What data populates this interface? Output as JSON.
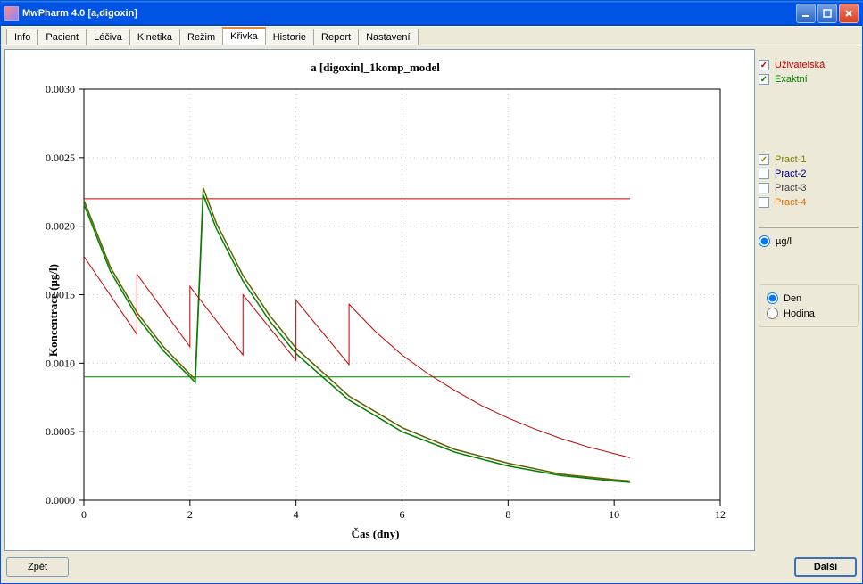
{
  "window": {
    "title": "MwPharm 4.0  [a,digoxin]"
  },
  "tabs": [
    "Info",
    "Pacient",
    "Léčiva",
    "Kinetika",
    "Režim",
    "Křivka",
    "Historie",
    "Report",
    "Nastavení"
  ],
  "active_tab_index": 5,
  "buttons": {
    "back_label": "Zpět",
    "next_label": "Další"
  },
  "legend": {
    "series": [
      {
        "label": "Uživatelská",
        "color": "#c00000",
        "checked": true
      },
      {
        "label": "Exaktní",
        "color": "#008000",
        "checked": true
      }
    ],
    "pract": [
      {
        "label": "Pract-1",
        "color": "#808000",
        "checked": true
      },
      {
        "label": "Pract-2",
        "color": "#000080",
        "checked": false
      },
      {
        "label": "Pract-3",
        "color": "#404040",
        "checked": false
      },
      {
        "label": "Pract-4",
        "color": "#e07000",
        "checked": false
      }
    ]
  },
  "units": {
    "options": [
      "µg/l"
    ],
    "selected": "µg/l"
  },
  "time_unit": {
    "options": [
      "Den",
      "Hodina"
    ],
    "selected": "Den"
  },
  "chart": {
    "title": "a [digoxin]_1komp_model",
    "ylabel": "Koncentrace  (µg/l)",
    "xlabel": "Čas (dny)",
    "xlim": [
      0,
      12
    ],
    "ylim": [
      0.0,
      0.003
    ],
    "xtick_step": 2,
    "ytick_step": 0.0005,
    "ytick_format_decimals": 4,
    "grid_color": "#cccccc",
    "axis_color": "#000000",
    "background": "#ffffff",
    "tick_fontsize": 12,
    "tick_fontfamily": "Times New Roman, serif",
    "href_lines": [
      {
        "y": 0.0009,
        "color": "#008000",
        "width": 1,
        "xmax": 10.3
      },
      {
        "y": 0.0022,
        "color": "#c00000",
        "width": 1,
        "xmax": 10.3
      }
    ],
    "series_decay": [
      {
        "name": "olive",
        "color": "#606000",
        "width": 1.5,
        "points": [
          [
            0,
            0.00219
          ],
          [
            0.5,
            0.0017
          ],
          [
            1,
            0.00137
          ],
          [
            1.5,
            0.00112
          ],
          [
            2,
            0.00092
          ],
          [
            2.1,
            0.00088
          ],
          [
            2.25,
            0.00228
          ],
          [
            2.5,
            0.00202
          ],
          [
            3,
            0.00164
          ],
          [
            3.5,
            0.00135
          ],
          [
            4,
            0.00111
          ],
          [
            5,
            0.00076
          ],
          [
            6,
            0.00053
          ],
          [
            7,
            0.00037
          ],
          [
            8,
            0.00027
          ],
          [
            9,
            0.00019
          ],
          [
            10,
            0.00015
          ],
          [
            10.3,
            0.00014
          ]
        ]
      },
      {
        "name": "green",
        "color": "#008000",
        "width": 1.5,
        "points": [
          [
            0,
            0.00216
          ],
          [
            0.5,
            0.00167
          ],
          [
            1,
            0.00134
          ],
          [
            1.5,
            0.00109
          ],
          [
            2,
            0.0009
          ],
          [
            2.1,
            0.00086
          ],
          [
            2.25,
            0.00223
          ],
          [
            2.5,
            0.00198
          ],
          [
            3,
            0.0016
          ],
          [
            3.5,
            0.00131
          ],
          [
            4,
            0.00107
          ],
          [
            5,
            0.00073
          ],
          [
            6,
            0.0005
          ],
          [
            7,
            0.00035
          ],
          [
            8,
            0.00025
          ],
          [
            9,
            0.00018
          ],
          [
            10,
            0.00014
          ],
          [
            10.3,
            0.00013
          ]
        ]
      },
      {
        "name": "red_sawtooth",
        "color": "#c00000",
        "width": 1,
        "points": [
          [
            0,
            0.00178
          ],
          [
            1,
            0.00121
          ],
          [
            1,
            0.00165
          ],
          [
            2,
            0.00112
          ],
          [
            2,
            0.00156
          ],
          [
            3,
            0.00106
          ],
          [
            3,
            0.0015
          ],
          [
            4,
            0.00102
          ],
          [
            4,
            0.00146
          ],
          [
            5,
            0.00099
          ],
          [
            5,
            0.00143
          ],
          [
            5.5,
            0.00123
          ],
          [
            6,
            0.00106
          ],
          [
            6.5,
            0.00092
          ],
          [
            7,
            0.0008
          ],
          [
            7.5,
            0.00069
          ],
          [
            8,
            0.0006
          ],
          [
            8.5,
            0.00052
          ],
          [
            9,
            0.00045
          ],
          [
            9.5,
            0.00039
          ],
          [
            10,
            0.00034
          ],
          [
            10.3,
            0.00031
          ]
        ]
      }
    ]
  }
}
